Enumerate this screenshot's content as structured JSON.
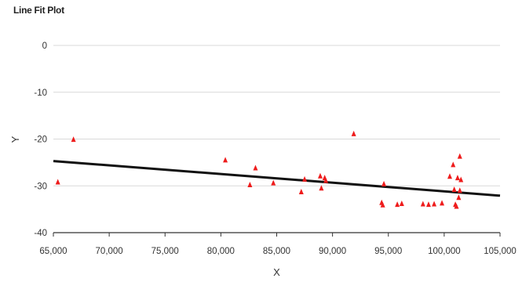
{
  "chart_data": {
    "type": "scatter",
    "title": "Line Fit Plot",
    "xlabel": "X",
    "ylabel": "Y",
    "xlim": [
      65000,
      105000
    ],
    "ylim": [
      -40,
      0
    ],
    "x_ticks": [
      65000,
      70000,
      75000,
      80000,
      85000,
      90000,
      95000,
      100000,
      105000
    ],
    "y_ticks": [
      0,
      -10,
      -20,
      -30,
      -40
    ],
    "x_tick_labels": [
      "65,000",
      "70,000",
      "75,000",
      "80,000",
      "85,000",
      "90,000",
      "95,000",
      "100,000",
      "105,000"
    ],
    "y_tick_labels": [
      "0",
      "-10",
      "-20",
      "-30",
      "-40"
    ],
    "grid": "horizontal",
    "points": [
      {
        "x": 65400,
        "y": -29.2
      },
      {
        "x": 66800,
        "y": -20.1
      },
      {
        "x": 80400,
        "y": -24.5
      },
      {
        "x": 82600,
        "y": -29.8
      },
      {
        "x": 83100,
        "y": -26.2
      },
      {
        "x": 84700,
        "y": -29.4
      },
      {
        "x": 87200,
        "y": -31.3
      },
      {
        "x": 87500,
        "y": -28.6
      },
      {
        "x": 88900,
        "y": -27.9
      },
      {
        "x": 89000,
        "y": -30.5
      },
      {
        "x": 89300,
        "y": -28.3
      },
      {
        "x": 89400,
        "y": -28.9
      },
      {
        "x": 91900,
        "y": -18.9
      },
      {
        "x": 94400,
        "y": -33.6
      },
      {
        "x": 94500,
        "y": -34.1
      },
      {
        "x": 94600,
        "y": -29.6
      },
      {
        "x": 95800,
        "y": -34.0
      },
      {
        "x": 96200,
        "y": -33.8
      },
      {
        "x": 98100,
        "y": -33.9
      },
      {
        "x": 98600,
        "y": -34.0
      },
      {
        "x": 99100,
        "y": -33.9
      },
      {
        "x": 99800,
        "y": -33.7
      },
      {
        "x": 100500,
        "y": -28.0
      },
      {
        "x": 100800,
        "y": -25.5
      },
      {
        "x": 100900,
        "y": -30.8
      },
      {
        "x": 101000,
        "y": -34.0
      },
      {
        "x": 101100,
        "y": -34.4
      },
      {
        "x": 101200,
        "y": -28.3
      },
      {
        "x": 101300,
        "y": -32.5
      },
      {
        "x": 101400,
        "y": -31.0
      },
      {
        "x": 101400,
        "y": -23.7
      },
      {
        "x": 101500,
        "y": -28.7
      }
    ],
    "fit_line": {
      "x": [
        65000,
        105000
      ],
      "y": [
        -24.7,
        -32.1
      ]
    },
    "colors": {
      "points": "#ee1c1c",
      "fit_line": "#111111",
      "grid": "#d9d9d9",
      "axis": "#333333"
    }
  }
}
